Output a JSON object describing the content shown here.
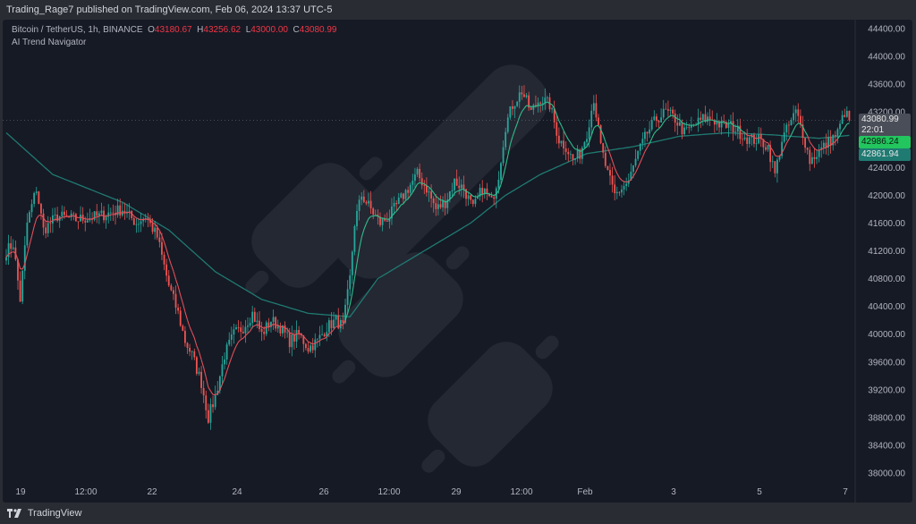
{
  "header": {
    "published_text": "Trading_Rage7 published on TradingView.com, Feb 06, 2024 13:37 UTC-5"
  },
  "legend": {
    "symbol": "Bitcoin / TetherUS, 1h, BINANCE",
    "o_label": "O",
    "o_value": "43180.67",
    "h_label": "H",
    "h_value": "43256.62",
    "l_label": "L",
    "l_value": "43000.00",
    "c_label": "C",
    "c_value": "43080.99",
    "indicator": "AI Trend Navigator"
  },
  "footer": {
    "brand": "TradingView"
  },
  "colors": {
    "up": "#26a69a",
    "down": "#ef5350",
    "slow_line": "#1f7a72",
    "fast_line_up": "#2fbf8c",
    "fast_line_down": "#e0505a",
    "background": "#161a25",
    "watermark": "#242833"
  },
  "price_labels": {
    "last": {
      "value": "43080.99",
      "countdown": "22:01",
      "color": "#4a4e58"
    },
    "fast": {
      "value": "42986.24",
      "color": "#22c55e"
    },
    "slow": {
      "value": "42861.94",
      "color": "#1f7a72"
    }
  },
  "chart_data": {
    "type": "candlestick",
    "y_ticks": [
      "44400.00",
      "44000.00",
      "43600.00",
      "43200.00",
      "42800.00",
      "42400.00",
      "42000.00",
      "41600.00",
      "41200.00",
      "40800.00",
      "40400.00",
      "40000.00",
      "39600.00",
      "39200.00",
      "38800.00",
      "38400.00",
      "38000.00"
    ],
    "ylim": [
      37700,
      44600
    ],
    "x_ticks": [
      "19",
      "12:00",
      "22",
      "24",
      "26",
      "12:00",
      "29",
      "12:00",
      "Feb",
      "3",
      "5",
      "7"
    ],
    "price_path": [
      [
        0,
        41200
      ],
      [
        3,
        41300
      ],
      [
        6,
        40500
      ],
      [
        9,
        41600
      ],
      [
        13,
        42100
      ],
      [
        16,
        41500
      ],
      [
        22,
        41700
      ],
      [
        30,
        41650
      ],
      [
        40,
        41700
      ],
      [
        50,
        41800
      ],
      [
        56,
        41600
      ],
      [
        60,
        41700
      ],
      [
        65,
        41400
      ],
      [
        70,
        40700
      ],
      [
        74,
        40300
      ],
      [
        77,
        39900
      ],
      [
        80,
        39700
      ],
      [
        84,
        39300
      ],
      [
        87,
        38800
      ],
      [
        90,
        39100
      ],
      [
        94,
        39700
      ],
      [
        98,
        40000
      ],
      [
        102,
        40100
      ],
      [
        106,
        40300
      ],
      [
        110,
        40000
      ],
      [
        114,
        40200
      ],
      [
        118,
        40100
      ],
      [
        122,
        39900
      ],
      [
        126,
        40000
      ],
      [
        130,
        39800
      ],
      [
        134,
        39900
      ],
      [
        138,
        40100
      ],
      [
        142,
        40200
      ],
      [
        145,
        40100
      ],
      [
        148,
        40800
      ],
      [
        150,
        41600
      ],
      [
        153,
        42000
      ],
      [
        157,
        41800
      ],
      [
        161,
        41600
      ],
      [
        165,
        41700
      ],
      [
        169,
        41900
      ],
      [
        173,
        42100
      ],
      [
        177,
        42300
      ],
      [
        181,
        42100
      ],
      [
        185,
        41800
      ],
      [
        189,
        41900
      ],
      [
        193,
        42200
      ],
      [
        197,
        42100
      ],
      [
        201,
        41800
      ],
      [
        205,
        42100
      ],
      [
        209,
        41900
      ],
      [
        212,
        42300
      ],
      [
        215,
        43000
      ],
      [
        218,
        43300
      ],
      [
        222,
        43500
      ],
      [
        226,
        43200
      ],
      [
        230,
        43400
      ],
      [
        234,
        43300
      ],
      [
        238,
        42800
      ],
      [
        241,
        42700
      ],
      [
        244,
        42500
      ],
      [
        247,
        42600
      ],
      [
        250,
        42900
      ],
      [
        253,
        43400
      ],
      [
        256,
        42700
      ],
      [
        259,
        42300
      ],
      [
        262,
        42000
      ],
      [
        265,
        42100
      ],
      [
        268,
        42200
      ],
      [
        272,
        42600
      ],
      [
        276,
        42900
      ],
      [
        280,
        43100
      ],
      [
        284,
        43200
      ],
      [
        288,
        43100
      ],
      [
        292,
        42900
      ],
      [
        296,
        43000
      ],
      [
        300,
        43100
      ],
      [
        304,
        43100
      ],
      [
        308,
        43000
      ],
      [
        312,
        43000
      ],
      [
        316,
        42900
      ],
      [
        320,
        42800
      ],
      [
        324,
        42800
      ],
      [
        328,
        42700
      ],
      [
        331,
        42300
      ],
      [
        334,
        42800
      ],
      [
        337,
        43000
      ],
      [
        340,
        43200
      ],
      [
        343,
        42900
      ],
      [
        346,
        42500
      ],
      [
        349,
        42600
      ],
      [
        352,
        42700
      ],
      [
        355,
        42800
      ],
      [
        358,
        42900
      ],
      [
        361,
        43200
      ],
      [
        363,
        43080
      ]
    ],
    "fast_ma_color_rule": "above slow = green, below = red",
    "slow_ma_path": [
      [
        0,
        42900
      ],
      [
        20,
        42300
      ],
      [
        50,
        41900
      ],
      [
        70,
        41500
      ],
      [
        90,
        40900
      ],
      [
        110,
        40500
      ],
      [
        130,
        40300
      ],
      [
        148,
        40250
      ],
      [
        160,
        40800
      ],
      [
        180,
        41200
      ],
      [
        200,
        41600
      ],
      [
        215,
        42000
      ],
      [
        230,
        42300
      ],
      [
        250,
        42600
      ],
      [
        270,
        42700
      ],
      [
        290,
        42850
      ],
      [
        310,
        42900
      ],
      [
        330,
        42870
      ],
      [
        350,
        42820
      ],
      [
        363,
        42862
      ]
    ]
  }
}
